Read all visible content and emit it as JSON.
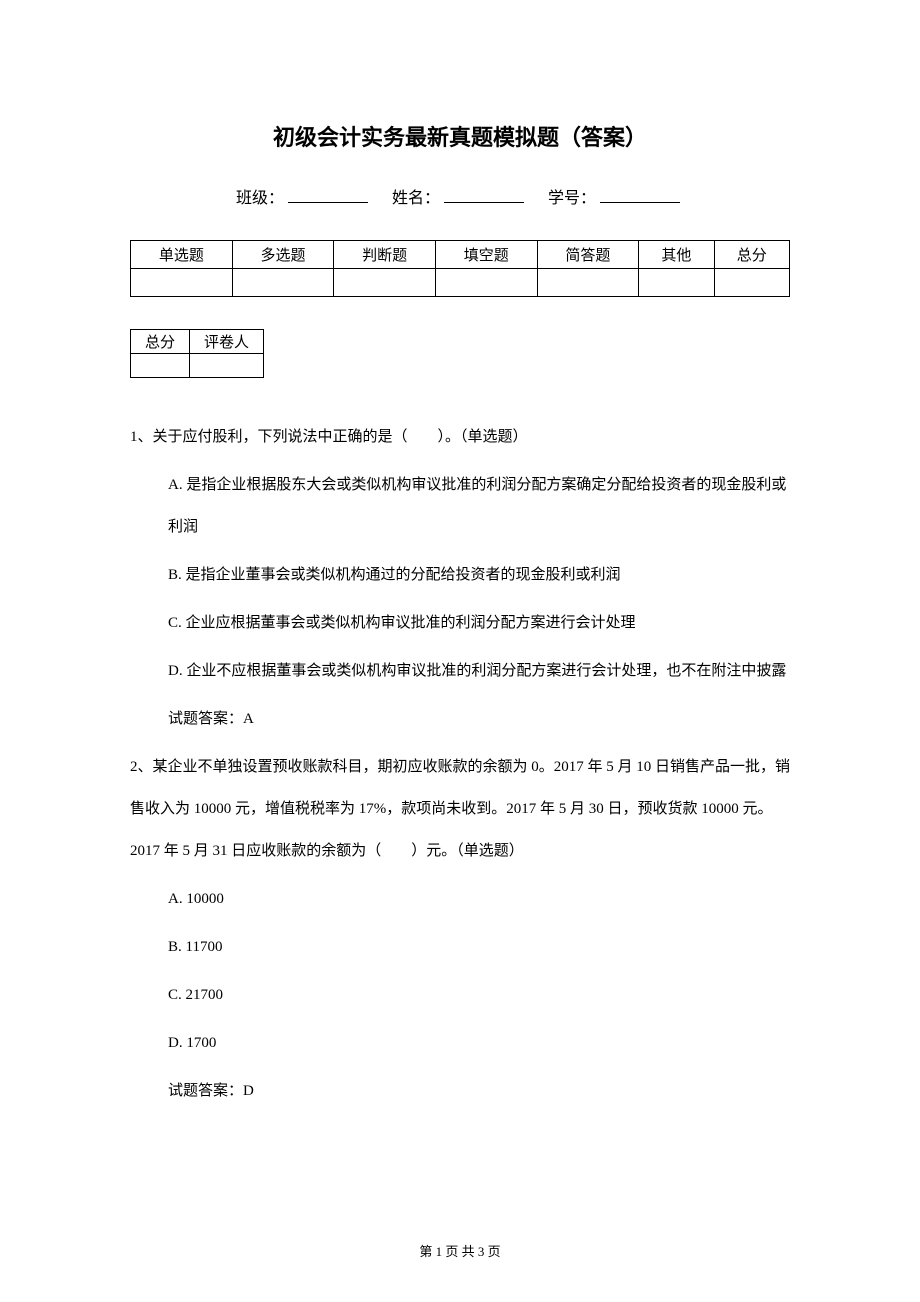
{
  "title": "初级会计实务最新真题模拟题（答案）",
  "info": {
    "class_label": "班级：",
    "name_label": "姓名：",
    "id_label": "学号："
  },
  "score_table": {
    "headers": [
      "单选题",
      "多选题",
      "判断题",
      "填空题",
      "简答题",
      "其他",
      "总分"
    ]
  },
  "small_table": {
    "cells": [
      "总分",
      "评卷人"
    ]
  },
  "q1": {
    "text": "1、关于应付股利，下列说法中正确的是（　　）。（单选题）",
    "optA": "A. 是指企业根据股东大会或类似机构审议批准的利润分配方案确定分配给投资者的现金股利或利润",
    "optB": "B. 是指企业董事会或类似机构通过的分配给投资者的现金股利或利润",
    "optC": "C. 企业应根据董事会或类似机构审议批准的利润分配方案进行会计处理",
    "optD": "D. 企业不应根据董事会或类似机构审议批准的利润分配方案进行会计处理，也不在附注中披露",
    "answer": "试题答案：A"
  },
  "q2": {
    "text": "2、某企业不单独设置预收账款科目，期初应收账款的余额为 0。2017 年 5 月 10 日销售产品一批，销售收入为 10000 元，增值税税率为 17%，款项尚未收到。2017 年 5 月 30 日，预收货款 10000 元。2017 年 5 月 31 日应收账款的余额为（　　）元。（单选题）",
    "optA": "A. 10000",
    "optB": "B. 11700",
    "optC": "C. 21700",
    "optD": "D. 1700",
    "answer": "试题答案：D"
  },
  "footer": "第 1 页 共 3 页"
}
